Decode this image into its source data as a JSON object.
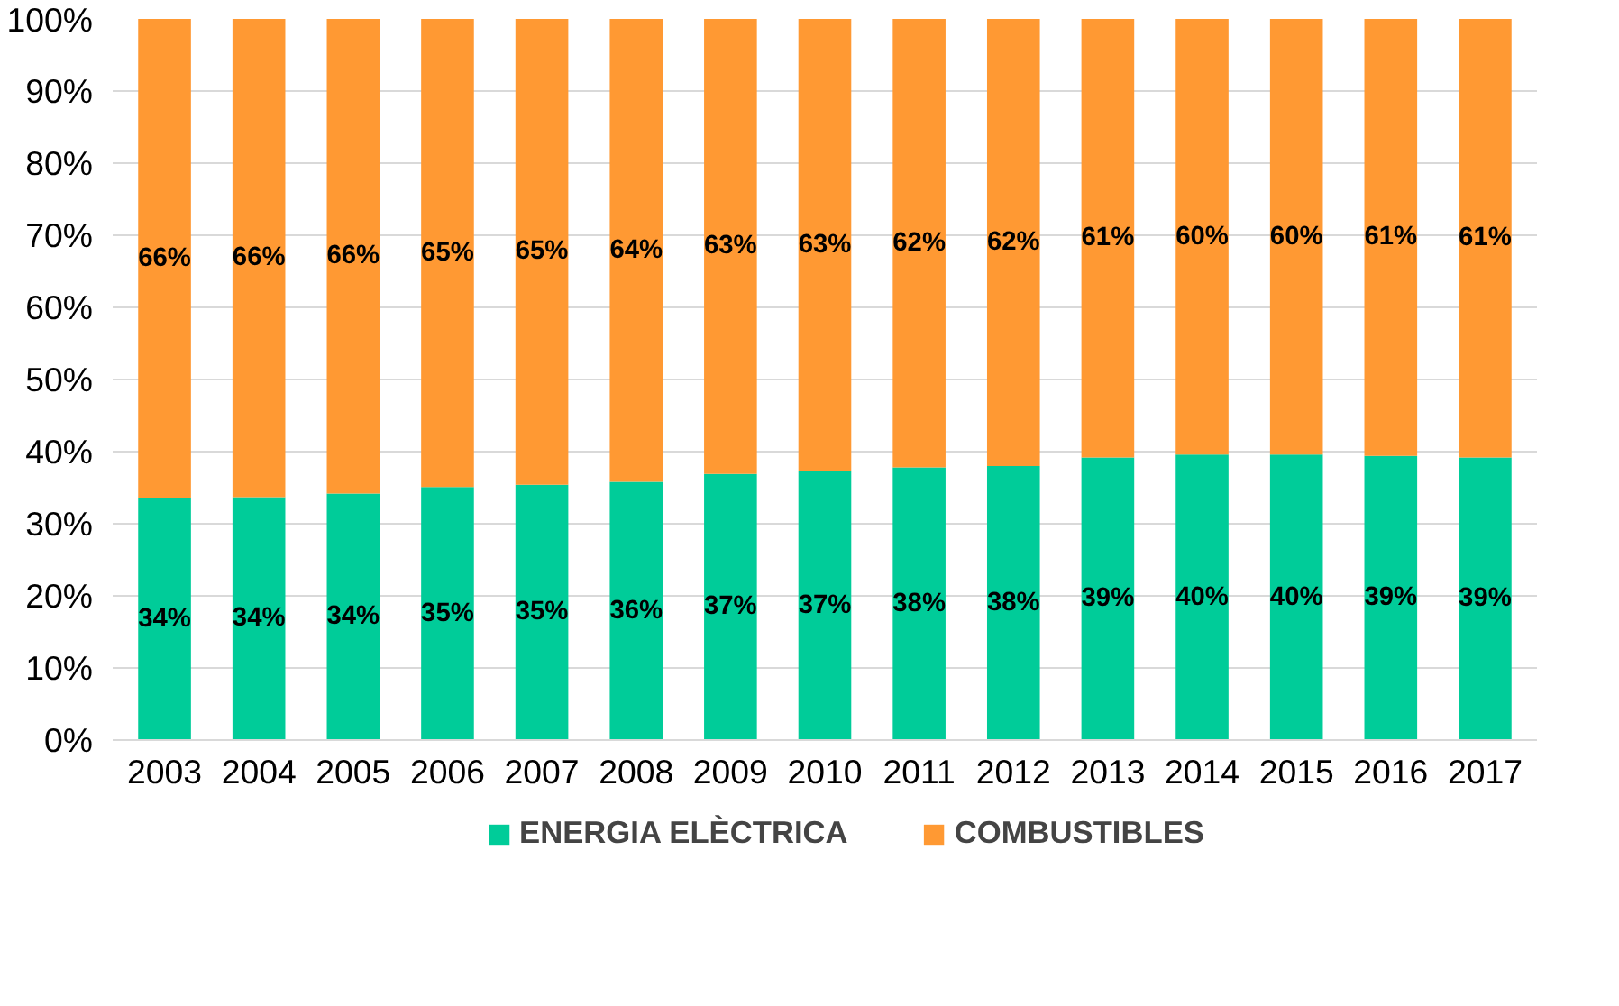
{
  "chart_data": {
    "type": "bar",
    "stacked": true,
    "categories": [
      "2003",
      "2004",
      "2005",
      "2006",
      "2007",
      "2008",
      "2009",
      "2010",
      "2011",
      "2012",
      "2013",
      "2014",
      "2015",
      "2016",
      "2017"
    ],
    "series": [
      {
        "name": "ENERGIA ELÈCTRICA",
        "color": "#00cc99",
        "values": [
          33.6,
          33.7,
          34.2,
          35.1,
          35.4,
          35.8,
          36.9,
          37.3,
          37.8,
          38.0,
          39.2,
          39.6,
          39.6,
          39.4,
          39.2
        ],
        "value_labels": [
          "34%",
          "34%",
          "34%",
          "35%",
          "35%",
          "36%",
          "37%",
          "37%",
          "38%",
          "38%",
          "39%",
          "40%",
          "40%",
          "39%",
          "39%"
        ]
      },
      {
        "name": "COMBUSTIBLES",
        "color": "#ff9933",
        "values": [
          66.4,
          66.3,
          65.8,
          64.9,
          64.6,
          64.2,
          63.1,
          62.7,
          62.2,
          62.0,
          60.8,
          60.4,
          60.4,
          60.6,
          60.8
        ],
        "value_labels": [
          "66%",
          "66%",
          "66%",
          "65%",
          "65%",
          "64%",
          "63%",
          "63%",
          "62%",
          "62%",
          "61%",
          "60%",
          "60%",
          "61%",
          "61%"
        ]
      }
    ],
    "ylim": [
      0,
      100
    ],
    "yticks": [
      {
        "value": 0,
        "label": "0%"
      },
      {
        "value": 10,
        "label": "10%"
      },
      {
        "value": 20,
        "label": "20%"
      },
      {
        "value": 30,
        "label": "30%"
      },
      {
        "value": 40,
        "label": "40%"
      },
      {
        "value": 50,
        "label": "50%"
      },
      {
        "value": 60,
        "label": "60%"
      },
      {
        "value": 70,
        "label": "70%"
      },
      {
        "value": 80,
        "label": "80%"
      },
      {
        "value": 90,
        "label": "90%"
      },
      {
        "value": 100,
        "label": "100%"
      }
    ],
    "grid": "y",
    "legend": "bottom"
  }
}
